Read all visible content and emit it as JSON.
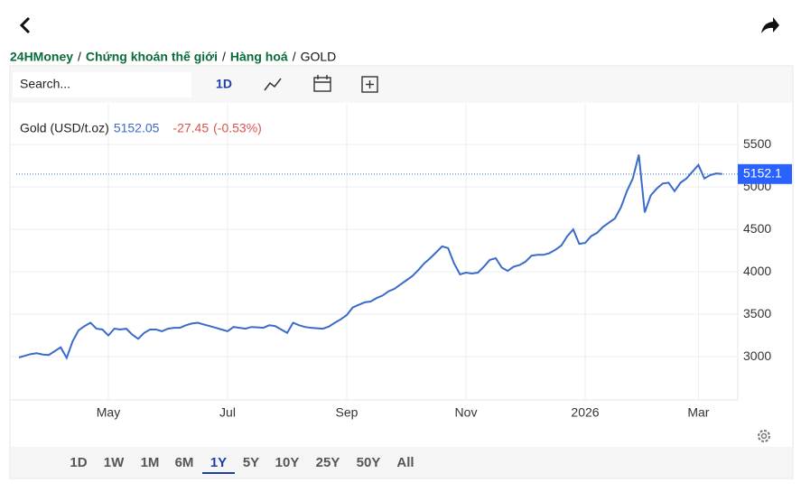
{
  "breadcrumb": {
    "items": [
      "24HMoney",
      "Chứng khoán thế giới",
      "Hàng hoá",
      "GOLD"
    ],
    "separator": "/"
  },
  "toolbar": {
    "search_placeholder": "Search...",
    "interval": "1D"
  },
  "chart_data": {
    "type": "line",
    "series": [
      {
        "name": "Gold (USD/t.oz)",
        "color": "#3a6bc9",
        "values": [
          2990,
          3010,
          3030,
          3040,
          3025,
          3020,
          3065,
          3110,
          2985,
          3180,
          3310,
          3360,
          3400,
          3330,
          3320,
          3250,
          3330,
          3320,
          3330,
          3260,
          3210,
          3280,
          3320,
          3320,
          3300,
          3330,
          3340,
          3340,
          3370,
          3390,
          3400,
          3380,
          3360,
          3340,
          3320,
          3300,
          3350,
          3340,
          3330,
          3350,
          3345,
          3340,
          3370,
          3360,
          3320,
          3280,
          3400,
          3370,
          3350,
          3340,
          3335,
          3330,
          3355,
          3400,
          3440,
          3490,
          3580,
          3610,
          3640,
          3650,
          3690,
          3720,
          3770,
          3800,
          3850,
          3900,
          3950,
          4020,
          4100,
          4160,
          4230,
          4300,
          4280,
          4100,
          3970,
          3990,
          3980,
          3990,
          4060,
          4140,
          4160,
          4050,
          4010,
          4060,
          4080,
          4120,
          4190,
          4200,
          4200,
          4220,
          4260,
          4310,
          4420,
          4500,
          4330,
          4340,
          4420,
          4460,
          4530,
          4580,
          4630,
          4760,
          4950,
          5100,
          5380,
          4700,
          4900,
          4980,
          5040,
          5050,
          4950,
          5050,
          5100,
          5180,
          5260,
          5100,
          5140,
          5160,
          5152.05
        ]
      }
    ],
    "categories": [
      null,
      null,
      null,
      null,
      null,
      null,
      null,
      null,
      null,
      null,
      null,
      null,
      null,
      null,
      null,
      "May",
      null,
      null,
      null,
      null,
      null,
      null,
      null,
      null,
      null,
      null,
      null,
      null,
      null,
      null,
      null,
      null,
      null,
      null,
      null,
      "Jul",
      null,
      null,
      null,
      null,
      null,
      null,
      null,
      null,
      null,
      null,
      null,
      null,
      null,
      null,
      null,
      null,
      null,
      null,
      null,
      "Sep",
      null,
      null,
      null,
      null,
      null,
      null,
      null,
      null,
      null,
      null,
      null,
      null,
      null,
      null,
      null,
      null,
      null,
      null,
      null,
      "Nov",
      null,
      null,
      null,
      null,
      null,
      null,
      null,
      null,
      null,
      null,
      null,
      null,
      null,
      null,
      null,
      null,
      null,
      null,
      null,
      "2026",
      null,
      null,
      null,
      null,
      null,
      null,
      null,
      null,
      null,
      null,
      null,
      null,
      null,
      null,
      null,
      null,
      null,
      null,
      "Mar",
      null,
      null,
      null,
      null
    ],
    "last_value": 5152.05,
    "change": -27.45,
    "change_pct": "(-0.53%)",
    "price_tag": 5152.1,
    "ylim": [
      2490,
      5980
    ],
    "yticks": [
      3000,
      3500,
      4000,
      4500,
      5000,
      5500
    ],
    "grid": true
  },
  "ranges": {
    "items": [
      "1D",
      "1W",
      "1M",
      "6M",
      "1Y",
      "5Y",
      "10Y",
      "25Y",
      "50Y",
      "All"
    ],
    "selected": "1Y"
  }
}
